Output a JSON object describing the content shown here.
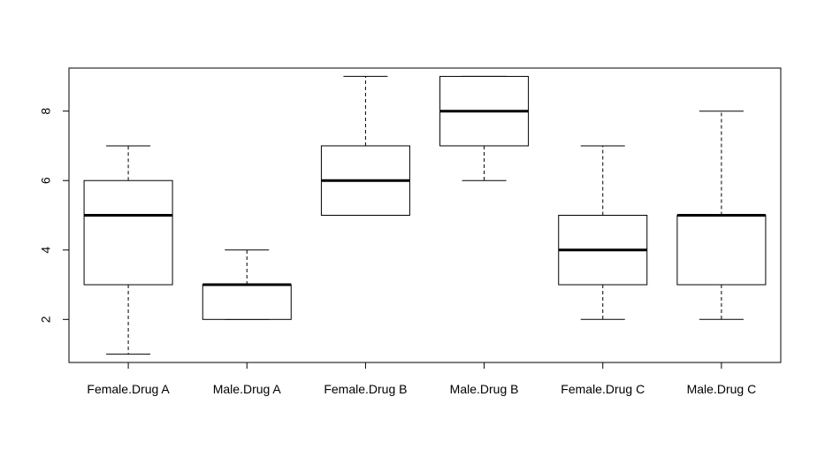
{
  "chart_data": {
    "type": "boxplot",
    "title": "",
    "xlabel": "",
    "ylabel": "",
    "ylim": [
      0.76,
      9.24
    ],
    "yticks": [
      2,
      4,
      6,
      8
    ],
    "grid": false,
    "categories": [
      "Female.Drug A",
      "Male.Drug A",
      "Female.Drug B",
      "Male.Drug B",
      "Female.Drug C",
      "Male.Drug C"
    ],
    "boxes": [
      {
        "category": "Female.Drug A",
        "whisker_low": 1,
        "q1": 3,
        "median": 5,
        "q3": 6,
        "whisker_high": 7
      },
      {
        "category": "Male.Drug A",
        "whisker_low": 2,
        "q1": 2,
        "median": 3,
        "q3": 3,
        "whisker_high": 4
      },
      {
        "category": "Female.Drug B",
        "whisker_low": 5,
        "q1": 5,
        "median": 6,
        "q3": 7,
        "whisker_high": 9
      },
      {
        "category": "Male.Drug B",
        "whisker_low": 6,
        "q1": 7,
        "median": 8,
        "q3": 9,
        "whisker_high": 9
      },
      {
        "category": "Female.Drug C",
        "whisker_low": 2,
        "q1": 3,
        "median": 4,
        "q3": 5,
        "whisker_high": 7
      },
      {
        "category": "Male.Drug C",
        "whisker_low": 2,
        "q1": 3,
        "median": 5,
        "q3": 5,
        "whisker_high": 8
      }
    ]
  }
}
